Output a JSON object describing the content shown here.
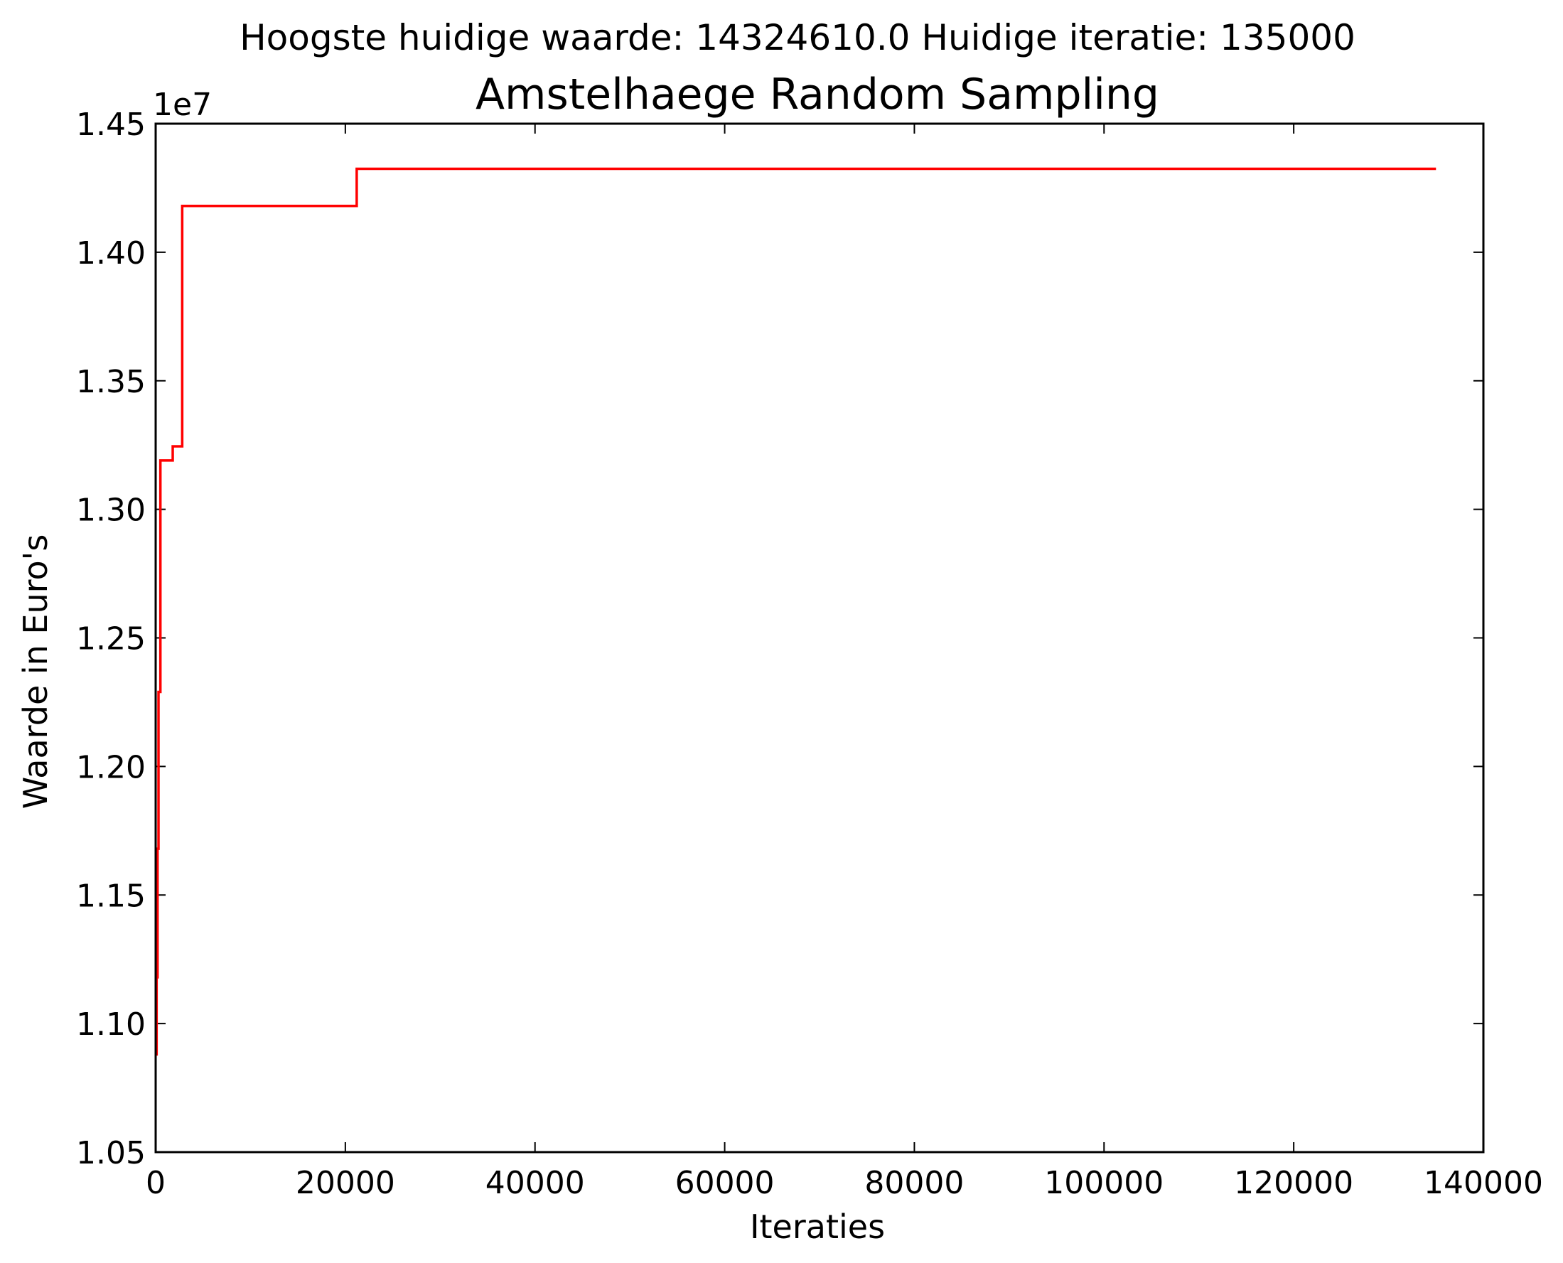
{
  "supertitle": "Hoogste huidige waarde: 14324610.0 Huidige iteratie: 135000",
  "chart_data": {
    "type": "line",
    "title": "Amstelhaege Random Sampling",
    "xlabel": "Iteraties",
    "ylabel": "Waarde in Euro's",
    "y_offset_label": "1e7",
    "xlim": [
      0,
      140000
    ],
    "ylim": [
      10500000,
      14500000
    ],
    "x_ticks": [
      0,
      20000,
      40000,
      60000,
      80000,
      100000,
      120000,
      140000
    ],
    "x_tick_labels": [
      "0",
      "20000",
      "40000",
      "60000",
      "80000",
      "100000",
      "120000",
      "140000"
    ],
    "y_ticks": [
      10500000,
      11000000,
      11500000,
      12000000,
      12500000,
      13000000,
      13500000,
      14000000,
      14500000
    ],
    "y_tick_labels": [
      "1.05",
      "1.10",
      "1.15",
      "1.20",
      "1.25",
      "1.30",
      "1.35",
      "1.40",
      "1.45"
    ],
    "grid": false,
    "series": [
      {
        "color": "#ff0000",
        "step": "post",
        "points": [
          [
            0,
            10880000
          ],
          [
            100,
            11180000
          ],
          [
            200,
            11680000
          ],
          [
            300,
            12290000
          ],
          [
            500,
            13190000
          ],
          [
            1800,
            13245000
          ],
          [
            2800,
            14180000
          ],
          [
            21200,
            14324610
          ],
          [
            135000,
            14324610
          ]
        ]
      }
    ]
  }
}
